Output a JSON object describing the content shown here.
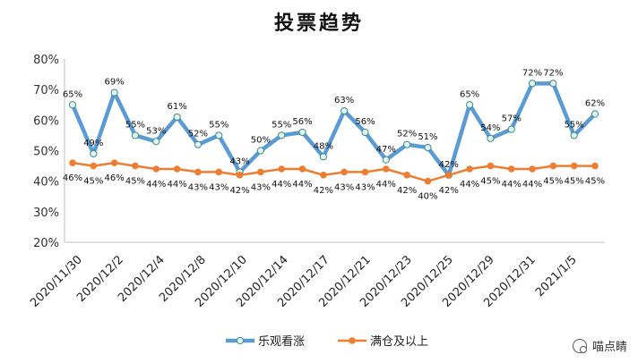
{
  "chart_data": {
    "type": "line",
    "title": "投票趋势",
    "xlabel": "",
    "ylabel": "",
    "ylim": [
      0.2,
      0.8
    ],
    "yticks": [
      "20%",
      "30%",
      "40%",
      "50%",
      "60%",
      "70%",
      "80%"
    ],
    "grid": false,
    "legend_position": "bottom",
    "x_tick_labels": [
      "2020/11/30",
      "2020/12/2",
      "2020/12/4",
      "2020/12/8",
      "2020/12/10",
      "2020/12/14",
      "2020/12/17",
      "2020/12/21",
      "2020/12/23",
      "2020/12/25",
      "2020/12/29",
      "2020/12/31",
      "2021/1/5"
    ],
    "series": [
      {
        "name": "乐观看涨",
        "color": "#5b9bd5",
        "marker_fill": "#e2f4ee",
        "values": [
          0.65,
          0.49,
          0.69,
          0.55,
          0.53,
          0.61,
          0.52,
          0.55,
          0.43,
          0.5,
          0.55,
          0.56,
          0.48,
          0.63,
          0.56,
          0.47,
          0.52,
          0.51,
          0.42,
          0.65,
          0.54,
          0.57,
          0.72,
          0.72,
          0.55,
          0.62
        ],
        "labels": [
          "65%",
          "49%",
          "69%",
          "55%",
          "53%",
          "61%",
          "52%",
          "55%",
          "43%",
          "50%",
          "55%",
          "56%",
          "48%",
          "63%",
          "56%",
          "47%",
          "52%",
          "51%",
          "42%",
          "65%",
          "54%",
          "57%",
          "72%",
          "72%",
          "55%",
          "62%"
        ]
      },
      {
        "name": "满仓及以上",
        "color": "#ed7d31",
        "values": [
          0.46,
          0.45,
          0.46,
          0.45,
          0.44,
          0.44,
          0.43,
          0.43,
          0.42,
          0.43,
          0.44,
          0.44,
          0.42,
          0.43,
          0.43,
          0.44,
          0.42,
          0.4,
          0.42,
          0.44,
          0.45,
          0.44,
          0.44,
          0.45,
          0.45,
          0.45
        ],
        "labels": [
          "46%",
          "45%",
          "46%",
          "45%",
          "44%",
          "44%",
          "43%",
          "43%",
          "42%",
          "43%",
          "44%",
          "44%",
          "42%",
          "43%",
          "43%",
          "44%",
          "42%",
          "40%",
          "42%",
          "44%",
          "45%",
          "44%",
          "44%",
          "45%",
          "45%",
          "45%"
        ]
      }
    ]
  },
  "watermark": {
    "text": "喵点睛",
    "icon": "wechat-icon"
  }
}
